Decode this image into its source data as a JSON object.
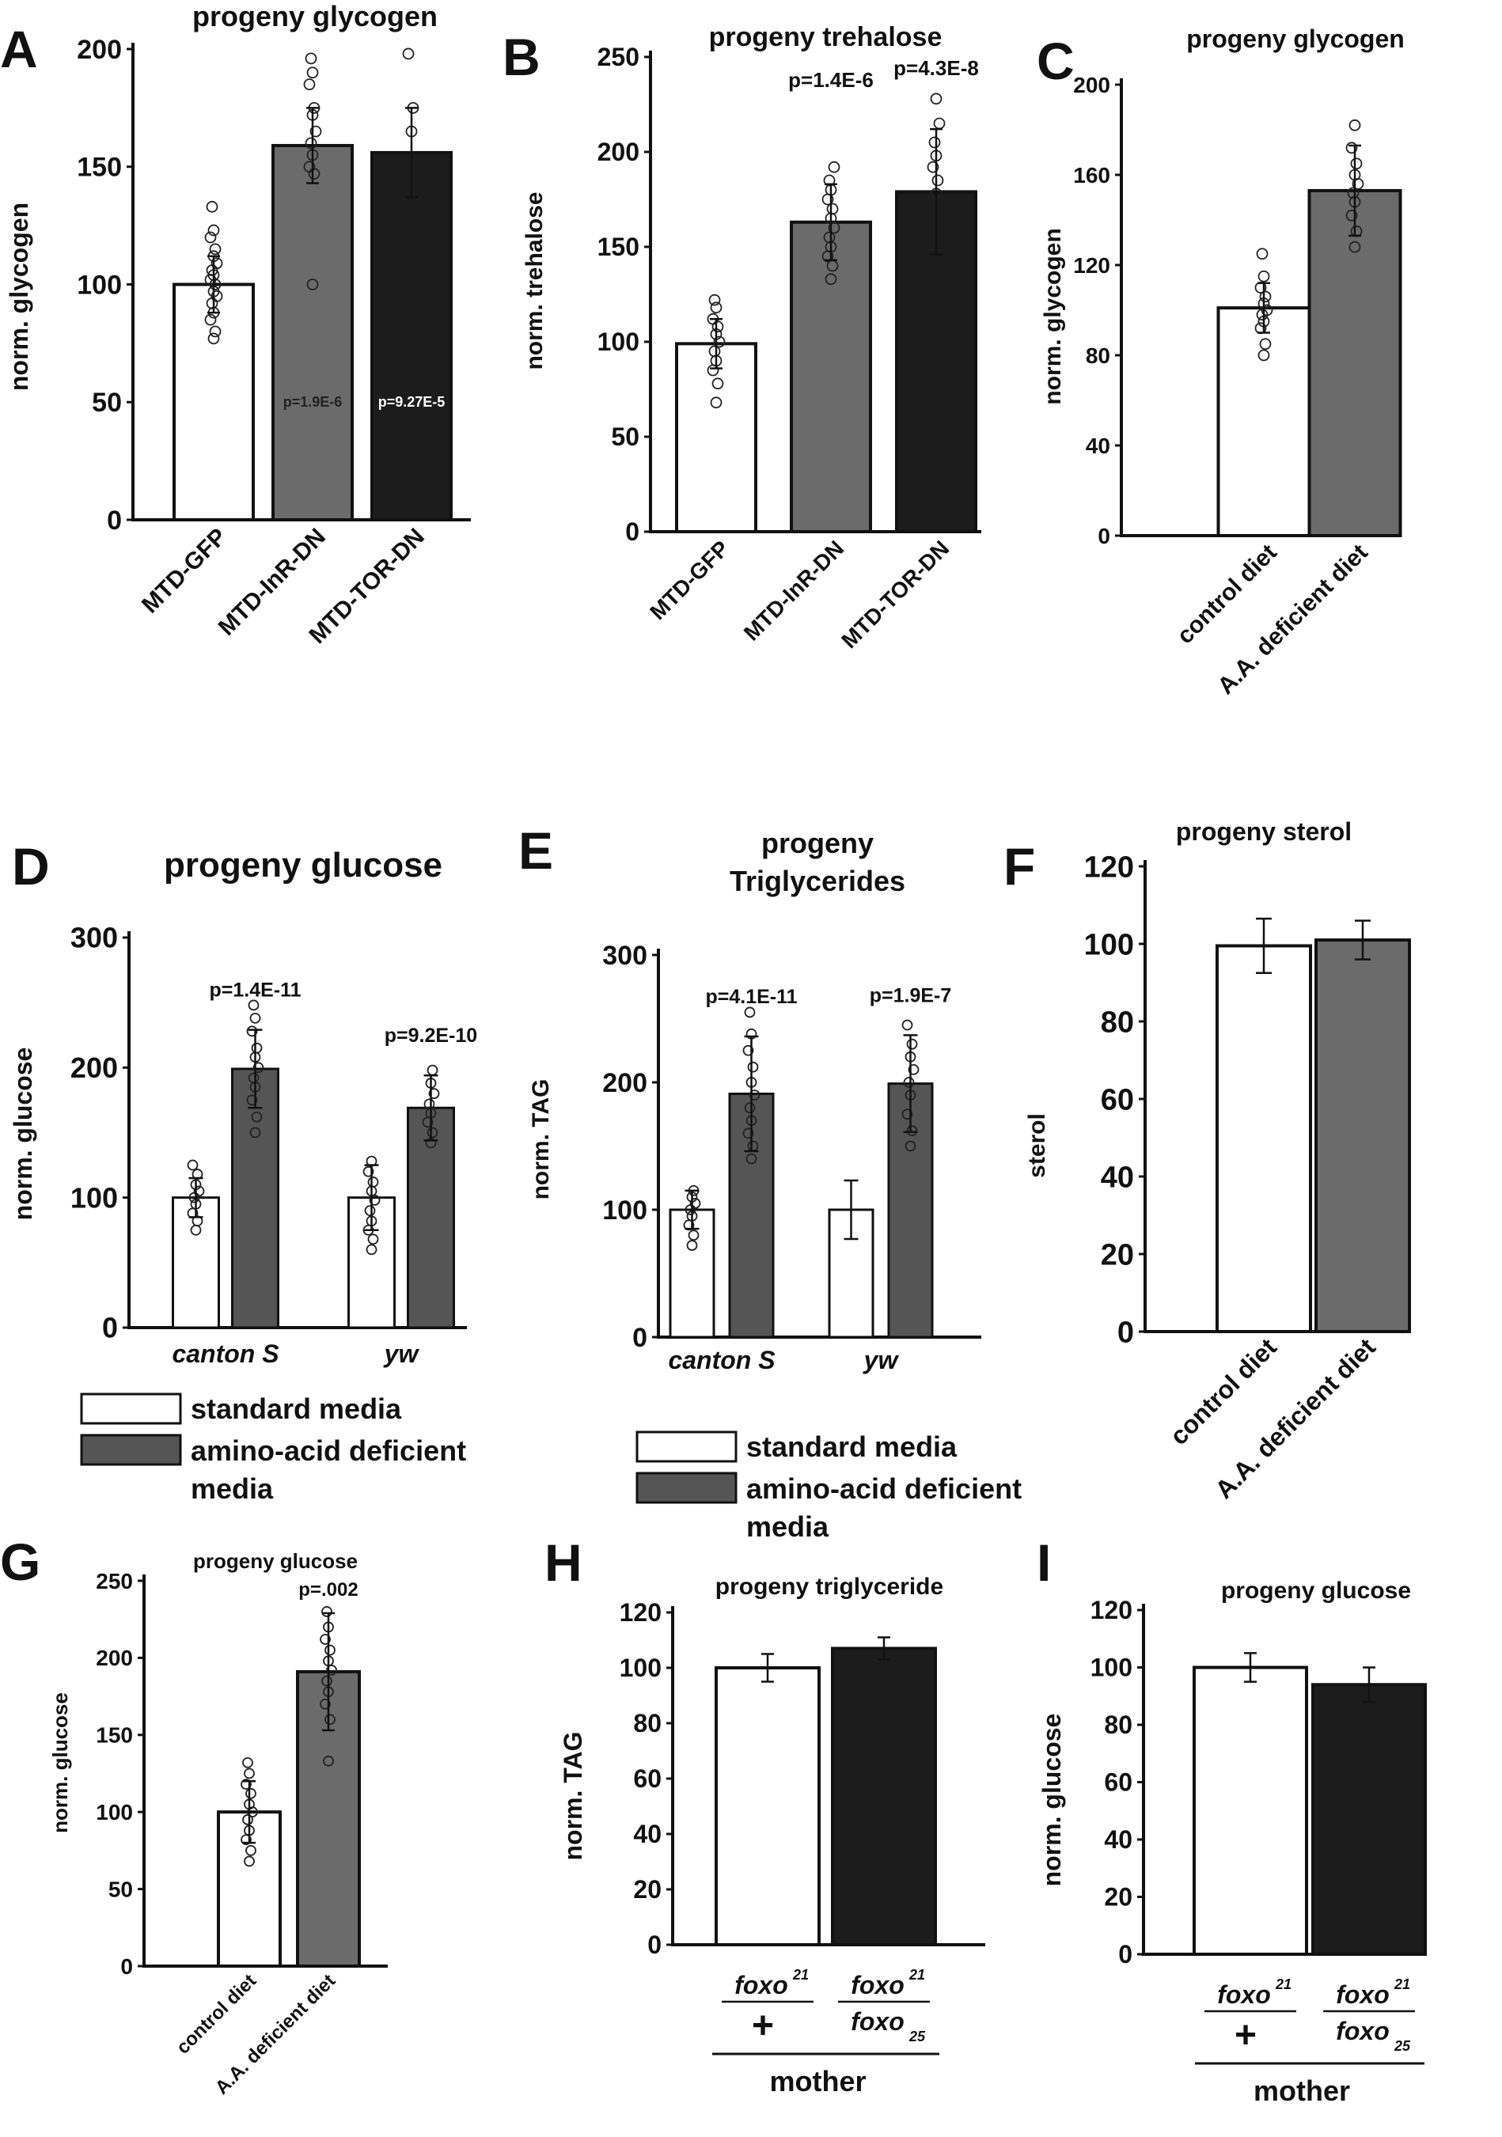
{
  "colors": {
    "white": "#ffffff",
    "gray": "#6b6b6b",
    "darkgray": "#555555",
    "black": "#1c1c1c",
    "axis": "#111111"
  },
  "chart_data": [
    {
      "panel": "A",
      "type": "bar",
      "title": "progeny glycogen",
      "ylabel": "norm. glycogen",
      "ylim": [
        0,
        200
      ],
      "yticks": [
        0,
        50,
        100,
        150,
        200
      ],
      "categories": [
        "MTD-GFP",
        "MTD-InR-DN",
        "MTD-TOR-DN"
      ],
      "values": [
        100,
        159,
        156
      ],
      "errors": [
        12,
        16,
        19
      ],
      "fills": [
        "white",
        "gray",
        "black"
      ],
      "points": [
        [
          77,
          80,
          85,
          88,
          92,
          95,
          97,
          100,
          102,
          104,
          106,
          109,
          112,
          115,
          120,
          123,
          133
        ],
        [
          100,
          147,
          150,
          155,
          160,
          165,
          172,
          175,
          185,
          190,
          196
        ],
        [
          165,
          175,
          198
        ]
      ],
      "bar_annotations": [
        "",
        "p=1.9E-6",
        "p=9.27E-5"
      ],
      "top_annotations": [
        "",
        "",
        ""
      ]
    },
    {
      "panel": "B",
      "type": "bar",
      "title": "progeny trehalose",
      "ylabel": "norm. trehalose",
      "ylim": [
        0,
        250
      ],
      "yticks": [
        0,
        50,
        100,
        150,
        200,
        250
      ],
      "categories": [
        "MTD-GFP",
        "MTD-InR-DN",
        "MTD-TOR-DN"
      ],
      "values": [
        99,
        163,
        179
      ],
      "errors": [
        13,
        20,
        33
      ],
      "fills": [
        "white",
        "gray",
        "black"
      ],
      "points": [
        [
          68,
          78,
          85,
          90,
          95,
          100,
          104,
          108,
          112,
          118,
          122
        ],
        [
          133,
          140,
          145,
          150,
          155,
          160,
          165,
          170,
          175,
          180,
          185,
          192
        ],
        [
          178,
          185,
          192,
          198,
          205,
          215,
          228
        ]
      ],
      "bar_annotations": [
        "",
        "",
        ""
      ],
      "top_annotations": [
        "",
        "p=1.4E-6",
        "p=4.3E-8"
      ]
    },
    {
      "panel": "C",
      "type": "bar",
      "title": "progeny glycogen",
      "ylabel": "norm. glycogen",
      "ylim": [
        0,
        200
      ],
      "yticks": [
        0,
        40,
        80,
        120,
        160,
        200
      ],
      "categories": [
        "control diet",
        "A.A. deficient diet"
      ],
      "values": [
        101,
        153
      ],
      "errors": [
        11,
        20
      ],
      "fills": [
        "white",
        "gray"
      ],
      "points": [
        [
          80,
          85,
          92,
          95,
          98,
          100,
          103,
          106,
          110,
          115,
          125
        ],
        [
          128,
          135,
          142,
          148,
          152,
          156,
          160,
          165,
          172,
          182
        ]
      ],
      "bar_annotations": [
        "",
        ""
      ],
      "top_annotations": [
        "",
        ""
      ]
    },
    {
      "panel": "D",
      "type": "grouped-bar",
      "title": "progeny glucose",
      "ylabel": "norm. glucose",
      "ylim": [
        0,
        300
      ],
      "yticks": [
        0,
        100,
        200,
        300
      ],
      "categories": [
        "canton S",
        "yw"
      ],
      "series": [
        {
          "name": "standard media",
          "fill": "white",
          "values": [
            100,
            100
          ],
          "errors": [
            15,
            25
          ],
          "points": [
            [
              75,
              82,
              88,
              95,
              100,
              105,
              110,
              118,
              125
            ],
            [
              60,
              68,
              75,
              82,
              90,
              98,
              105,
              112,
              120,
              128
            ]
          ]
        },
        {
          "name": "amino-acid deficient media",
          "fill": "darkgray",
          "values": [
            199,
            169
          ],
          "errors": [
            30,
            25
          ],
          "points": [
            [
              150,
              162,
              175,
              185,
              192,
              200,
              208,
              215,
              228,
              238,
              248
            ],
            [
              142,
              150,
              158,
              165,
              172,
              180,
              188,
              198
            ]
          ]
        }
      ],
      "top_annotations": [
        "p=1.4E-11",
        "p=9.2E-10"
      ],
      "legend": [
        "standard media",
        "amino-acid deficient",
        "media"
      ]
    },
    {
      "panel": "E",
      "type": "grouped-bar",
      "title": "progeny",
      "subtitle": "Triglycerides",
      "ylabel": "norm. TAG",
      "ylim": [
        0,
        300
      ],
      "yticks": [
        0,
        100,
        200,
        300
      ],
      "categories": [
        "canton S",
        "yw"
      ],
      "series": [
        {
          "name": "standard media",
          "fill": "white",
          "values": [
            100,
            100
          ],
          "errors": [
            15,
            23
          ],
          "points": [
            [
              72,
              80,
              88,
              95,
              100,
              105,
              110,
              115
            ],
            []
          ]
        },
        {
          "name": "amino-acid deficient media",
          "fill": "darkgray",
          "values": [
            191,
            199
          ],
          "errors": [
            45,
            38
          ],
          "points": [
            [
              140,
              150,
              160,
              170,
              180,
              190,
              200,
              212,
              225,
              238,
              255
            ],
            [
              150,
              162,
              175,
              190,
              200,
              210,
              220,
              230,
              245
            ]
          ]
        }
      ],
      "top_annotations": [
        "p=4.1E-11",
        "p=1.9E-7"
      ],
      "legend": [
        "standard media",
        "amino-acid deficient",
        "media"
      ]
    },
    {
      "panel": "F",
      "type": "bar",
      "title": "progeny sterol",
      "ylabel": "sterol",
      "ylim": [
        0,
        120
      ],
      "yticks": [
        0,
        20,
        40,
        60,
        80,
        100,
        120
      ],
      "categories": [
        "control diet",
        "A.A. deficient diet"
      ],
      "values": [
        99.5,
        101
      ],
      "errors": [
        7,
        5
      ],
      "fills": [
        "white",
        "gray"
      ],
      "points": [
        [],
        []
      ],
      "bar_annotations": [
        "",
        ""
      ],
      "top_annotations": [
        "",
        ""
      ]
    },
    {
      "panel": "G",
      "type": "bar",
      "title": "progeny glucose",
      "ylabel": "norm. glucose",
      "ylim": [
        0,
        250
      ],
      "yticks": [
        0,
        50,
        100,
        150,
        200,
        250
      ],
      "categories": [
        "control diet",
        "A.A. deficient diet"
      ],
      "values": [
        100,
        191
      ],
      "errors": [
        20,
        38
      ],
      "fills": [
        "white",
        "gray"
      ],
      "points": [
        [
          68,
          75,
          82,
          88,
          95,
          100,
          105,
          112,
          118,
          125,
          132
        ],
        [
          133,
          160,
          170,
          178,
          185,
          192,
          198,
          205,
          212,
          220,
          230
        ]
      ],
      "bar_annotations": [
        "",
        ""
      ],
      "top_annotations": [
        "",
        "p=.002"
      ]
    },
    {
      "panel": "H",
      "type": "bar",
      "title": "progeny triglyceride",
      "ylabel": "norm. TAG",
      "ylim": [
        0,
        120
      ],
      "yticks": [
        0,
        20,
        40,
        60,
        80,
        100,
        120
      ],
      "categories": [
        "foxo21/+",
        "foxo21/foxo25"
      ],
      "values": [
        100,
        107
      ],
      "errors": [
        5,
        4
      ],
      "fills": [
        "white",
        "black"
      ],
      "points": [
        [],
        []
      ],
      "bar_annotations": [
        "",
        ""
      ],
      "top_annotations": [
        "",
        ""
      ],
      "genotypes": [
        {
          "top": "foxo",
          "top_sup": "21",
          "bottom": "+",
          "bottom_sup": ""
        },
        {
          "top": "foxo",
          "top_sup": "21",
          "bottom": "foxo",
          "bottom_sup": "25"
        }
      ],
      "group_label": "mother"
    },
    {
      "panel": "I",
      "type": "bar",
      "title": "progeny glucose",
      "ylabel": "norm. glucose",
      "ylim": [
        0,
        120
      ],
      "yticks": [
        0,
        20,
        40,
        60,
        80,
        100,
        120
      ],
      "categories": [
        "foxo21/+",
        "foxo21/foxo25"
      ],
      "values": [
        100,
        94
      ],
      "errors": [
        5,
        6
      ],
      "fills": [
        "white",
        "black"
      ],
      "points": [
        [],
        []
      ],
      "bar_annotations": [
        "",
        ""
      ],
      "top_annotations": [
        "",
        ""
      ],
      "genotypes": [
        {
          "top": "foxo",
          "top_sup": "21",
          "bottom": "+",
          "bottom_sup": ""
        },
        {
          "top": "foxo",
          "top_sup": "21",
          "bottom": "foxo",
          "bottom_sup": "25"
        }
      ],
      "group_label": "mother"
    }
  ]
}
